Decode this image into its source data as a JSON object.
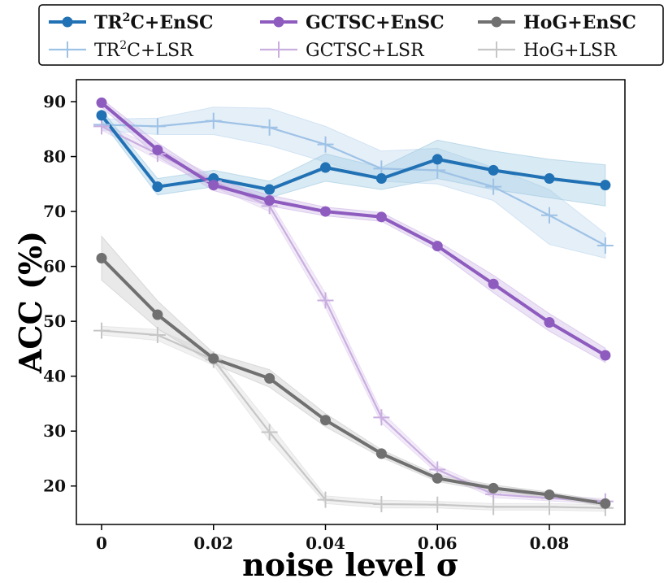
{
  "chart_data": {
    "type": "line",
    "title": "",
    "xlabel": "noise level σ",
    "ylabel": "ACC (%)",
    "x": [
      0,
      0.01,
      0.02,
      0.03,
      0.04,
      0.05,
      0.06,
      0.07,
      0.08,
      0.09
    ],
    "xticks": [
      0,
      0.02,
      0.04,
      0.06,
      0.08
    ],
    "xtick_labels": [
      "0",
      "0.02",
      "0.04",
      "0.06",
      "0.08"
    ],
    "yticks": [
      20,
      30,
      40,
      50,
      60,
      70,
      80,
      90
    ],
    "ytick_labels": [
      "20",
      "30",
      "40",
      "50",
      "60",
      "70",
      "80",
      "90"
    ],
    "xlim": [
      -0.0045,
      0.0935
    ],
    "ylim": [
      13,
      94
    ],
    "grid": false,
    "legend_position": "top",
    "series": [
      {
        "name": "TR²C+EnSC",
        "label_base": "TR",
        "label_sup": "2",
        "label_rest": "C+EnSC",
        "bold": true,
        "marker": "circle",
        "color": "#2171b5",
        "band_color": "#9ecae1",
        "values": [
          87.5,
          74.5,
          76.0,
          74.0,
          78.0,
          76.0,
          79.5,
          77.5,
          76.0,
          74.8
        ],
        "lower": [
          86.5,
          73.0,
          74.5,
          72.5,
          75.5,
          74.0,
          76.0,
          74.0,
          72.5,
          71.0
        ],
        "upper": [
          88.5,
          76.0,
          77.5,
          75.5,
          80.5,
          78.0,
          83.0,
          81.0,
          79.5,
          78.5
        ]
      },
      {
        "name": "GCTSC+EnSC",
        "label_base": "GCTSC+EnSC",
        "label_sup": "",
        "label_rest": "",
        "bold": true,
        "marker": "circle",
        "color": "#8e5bbf",
        "band_color": "#cdb6e6",
        "values": [
          89.8,
          81.2,
          74.8,
          72.0,
          70.0,
          69.0,
          63.7,
          56.8,
          49.8,
          43.8
        ],
        "lower": [
          89.0,
          80.0,
          73.8,
          71.0,
          69.2,
          68.2,
          62.8,
          55.2,
          48.2,
          42.5
        ],
        "upper": [
          90.5,
          82.5,
          75.8,
          73.0,
          70.8,
          69.8,
          64.6,
          58.4,
          51.4,
          45.1
        ]
      },
      {
        "name": "HoG+EnSC",
        "label_base": "HoG+EnSC",
        "label_sup": "",
        "label_rest": "",
        "bold": true,
        "marker": "circle",
        "color": "#707070",
        "band_color": "#c8c8c8",
        "values": [
          61.5,
          51.2,
          43.2,
          39.6,
          32.0,
          25.9,
          21.4,
          19.6,
          18.4,
          16.8
        ],
        "lower": [
          57.5,
          48.7,
          42.2,
          38.0,
          30.8,
          25.2,
          20.8,
          19.0,
          17.9,
          16.3
        ],
        "upper": [
          65.5,
          53.7,
          44.2,
          41.2,
          33.2,
          26.6,
          22.0,
          20.2,
          18.9,
          17.3
        ]
      },
      {
        "name": "TR²C+LSR",
        "label_base": "TR",
        "label_sup": "2",
        "label_rest": "C+LSR",
        "bold": false,
        "marker": "plus",
        "color": "#9ec2e6",
        "band_color": "#bdd7ee",
        "values": [
          85.8,
          85.5,
          86.5,
          85.3,
          82.2,
          77.8,
          77.5,
          74.5,
          69.3,
          63.8
        ],
        "lower": [
          84.8,
          84.0,
          84.0,
          82.0,
          79.0,
          75.5,
          75.0,
          72.0,
          64.0,
          61.5
        ],
        "upper": [
          86.8,
          87.0,
          89.0,
          88.8,
          85.5,
          81.0,
          81.5,
          78.0,
          74.0,
          66.0
        ]
      },
      {
        "name": "GCTSC+LSR",
        "label_base": "GCTSC+LSR",
        "label_sup": "",
        "label_rest": "",
        "bold": false,
        "marker": "plus",
        "color": "#c9aee0",
        "band_color": "#dfcdee",
        "values": [
          85.5,
          80.5,
          75.5,
          71.0,
          53.8,
          32.5,
          23.0,
          18.5,
          17.8,
          17.2
        ],
        "lower": [
          84.8,
          79.5,
          74.5,
          70.0,
          52.5,
          31.5,
          22.3,
          17.9,
          17.3,
          16.7
        ],
        "upper": [
          86.2,
          81.5,
          76.5,
          72.0,
          55.1,
          33.5,
          23.7,
          19.1,
          18.3,
          17.7
        ]
      },
      {
        "name": "HoG+LSR",
        "label_base": "HoG+LSR",
        "label_sup": "",
        "label_rest": "",
        "bold": false,
        "marker": "plus",
        "color": "#c6c6c6",
        "band_color": "#dcdcdc",
        "values": [
          48.3,
          47.5,
          43.0,
          29.8,
          17.5,
          16.7,
          16.6,
          16.2,
          16.2,
          16.0
        ],
        "lower": [
          47.5,
          46.5,
          42.0,
          28.3,
          16.8,
          16.0,
          16.0,
          15.6,
          15.6,
          15.4
        ],
        "upper": [
          49.1,
          48.5,
          44.0,
          31.3,
          18.2,
          17.4,
          17.2,
          16.8,
          16.8,
          16.6
        ]
      }
    ],
    "draw_order": [
      3,
      4,
      5,
      0,
      1,
      2
    ],
    "legend_order": [
      0,
      1,
      2,
      3,
      4,
      5
    ]
  }
}
